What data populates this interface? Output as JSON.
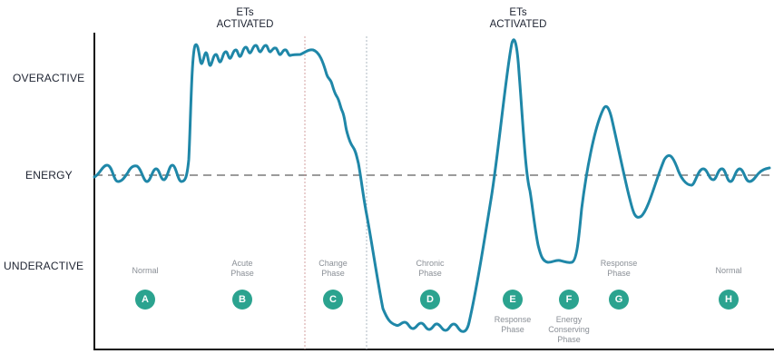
{
  "y_labels": {
    "over": "OVERACTIVE",
    "energy": "ENERGY",
    "under": "UNDERACTIVE"
  },
  "annotations": [
    {
      "line1": "ETs",
      "line2": "ACTIVATED"
    },
    {
      "line1": "ETs",
      "line2": "ACTIVATED"
    }
  ],
  "phases": [
    {
      "badge": "A",
      "above": "Normal",
      "below": ""
    },
    {
      "badge": "B",
      "above": "Acute\nPhase",
      "below": ""
    },
    {
      "badge": "C",
      "above": "Change\nPhase",
      "below": ""
    },
    {
      "badge": "D",
      "above": "Chronic\nPhase",
      "below": ""
    },
    {
      "badge": "E",
      "above": "",
      "below": "Response\nPhase"
    },
    {
      "badge": "F",
      "above": "",
      "below": "Energy\nConserving\nPhase"
    },
    {
      "badge": "G",
      "above": "Response\nPhase",
      "below": ""
    },
    {
      "badge": "H",
      "above": "Normal",
      "below": ""
    }
  ],
  "colors": {
    "curve": "#1f87a8",
    "badge": "#2ba38f",
    "baseline": "#7a7a7a",
    "axis": "#111111"
  }
}
